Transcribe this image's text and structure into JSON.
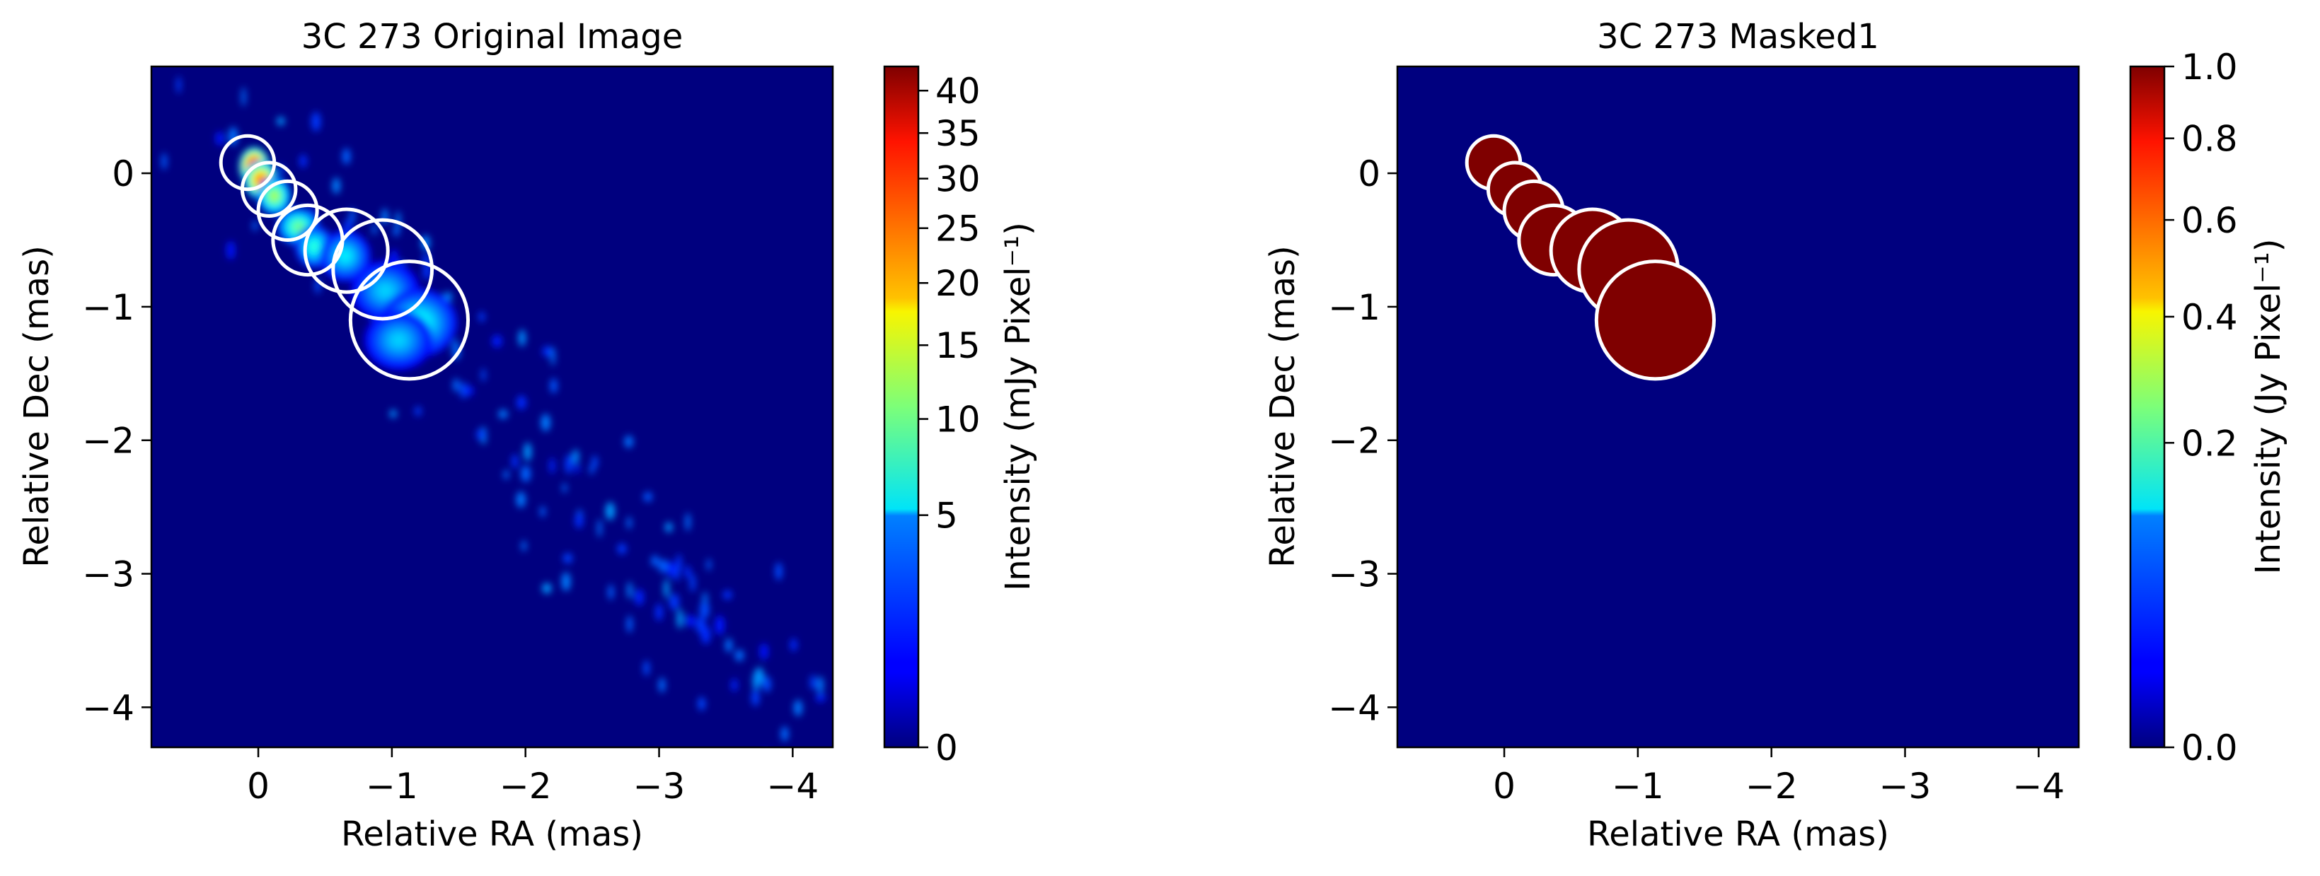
{
  "chart_data": [
    {
      "type": "heatmap",
      "title": "3C 273 Original Image",
      "xlabel": "Relative RA (mas)",
      "ylabel": "Relative Dec (mas)",
      "xlim": [
        0.8,
        -4.3
      ],
      "ylim": [
        -4.3,
        0.8
      ],
      "xticks": [
        0,
        -1,
        -2,
        -3,
        -4
      ],
      "xtick_labels": [
        "0",
        "−1",
        "−2",
        "−3",
        "−4"
      ],
      "yticks": [
        0,
        -1,
        -2,
        -3,
        -4
      ],
      "ytick_labels": [
        "0",
        "−1",
        "−2",
        "−3",
        "−4"
      ],
      "colormap": "jet",
      "colorbar": {
        "label": "Intensity (mJy Pixel⁻¹)",
        "scale": "power-law",
        "range": [
          0,
          43
        ],
        "ticks": [
          0,
          5,
          10,
          15,
          20,
          25,
          30,
          35,
          40
        ],
        "tick_labels": [
          "0",
          "5",
          "10",
          "15",
          "20",
          "25",
          "30",
          "35",
          "40"
        ]
      },
      "circles": [
        {
          "ra": 0.08,
          "dec": 0.08,
          "r": 0.2
        },
        {
          "ra": -0.08,
          "dec": -0.12,
          "r": 0.2
        },
        {
          "ra": -0.22,
          "dec": -0.28,
          "r": 0.22
        },
        {
          "ra": -0.37,
          "dec": -0.5,
          "r": 0.26
        },
        {
          "ra": -0.66,
          "dec": -0.58,
          "r": 0.31
        },
        {
          "ra": -0.93,
          "dec": -0.72,
          "r": 0.37
        },
        {
          "ra": -1.13,
          "dec": -1.1,
          "r": 0.44
        }
      ],
      "emission": [
        {
          "ra": 0.03,
          "dec": 0.05,
          "sx": 0.07,
          "sy": 0.09,
          "peak": 43
        },
        {
          "ra": -0.02,
          "dec": -0.05,
          "sx": 0.08,
          "sy": 0.09,
          "peak": 28
        },
        {
          "ra": -0.12,
          "dec": -0.17,
          "sx": 0.08,
          "sy": 0.09,
          "peak": 14
        },
        {
          "ra": -0.3,
          "dec": -0.4,
          "sx": 0.1,
          "sy": 0.09,
          "peak": 11
        },
        {
          "ra": -0.42,
          "dec": -0.55,
          "sx": 0.09,
          "sy": 0.1,
          "peak": 8
        },
        {
          "ra": -0.65,
          "dec": -0.62,
          "sx": 0.12,
          "sy": 0.12,
          "peak": 6
        },
        {
          "ra": -0.95,
          "dec": -0.88,
          "sx": 0.16,
          "sy": 0.14,
          "peak": 5
        },
        {
          "ra": -1.2,
          "dec": -1.12,
          "sx": 0.18,
          "sy": 0.16,
          "peak": 7
        },
        {
          "ra": -1.05,
          "dec": -1.25,
          "sx": 0.16,
          "sy": 0.14,
          "peak": 5
        }
      ]
    },
    {
      "type": "heatmap",
      "title": "3C 273 Masked1",
      "xlabel": "Relative RA (mas)",
      "ylabel": "Relative Dec (mas)",
      "xlim": [
        0.8,
        -4.3
      ],
      "ylim": [
        -4.3,
        0.8
      ],
      "xticks": [
        0,
        -1,
        -2,
        -3,
        -4
      ],
      "xtick_labels": [
        "0",
        "−1",
        "−2",
        "−3",
        "−4"
      ],
      "yticks": [
        0,
        -1,
        -2,
        -3,
        -4
      ],
      "ytick_labels": [
        "0",
        "−1",
        "−2",
        "−3",
        "−4"
      ],
      "colormap": "jet",
      "colorbar": {
        "label": "Intensity (Jy Pixel⁻¹)",
        "scale": "power-law",
        "range": [
          0.0,
          1.0
        ],
        "ticks": [
          0.0,
          0.2,
          0.4,
          0.6,
          0.8,
          1.0
        ],
        "tick_labels": [
          "0.0",
          "0.2",
          "0.4",
          "0.6",
          "0.8",
          "1.0"
        ]
      },
      "mask_value": 1.0,
      "circles": [
        {
          "ra": 0.08,
          "dec": 0.08,
          "r": 0.2
        },
        {
          "ra": -0.08,
          "dec": -0.12,
          "r": 0.2
        },
        {
          "ra": -0.22,
          "dec": -0.28,
          "r": 0.22
        },
        {
          "ra": -0.37,
          "dec": -0.5,
          "r": 0.26
        },
        {
          "ra": -0.66,
          "dec": -0.58,
          "r": 0.31
        },
        {
          "ra": -0.93,
          "dec": -0.72,
          "r": 0.37
        },
        {
          "ra": -1.13,
          "dec": -1.1,
          "r": 0.44
        }
      ]
    }
  ]
}
